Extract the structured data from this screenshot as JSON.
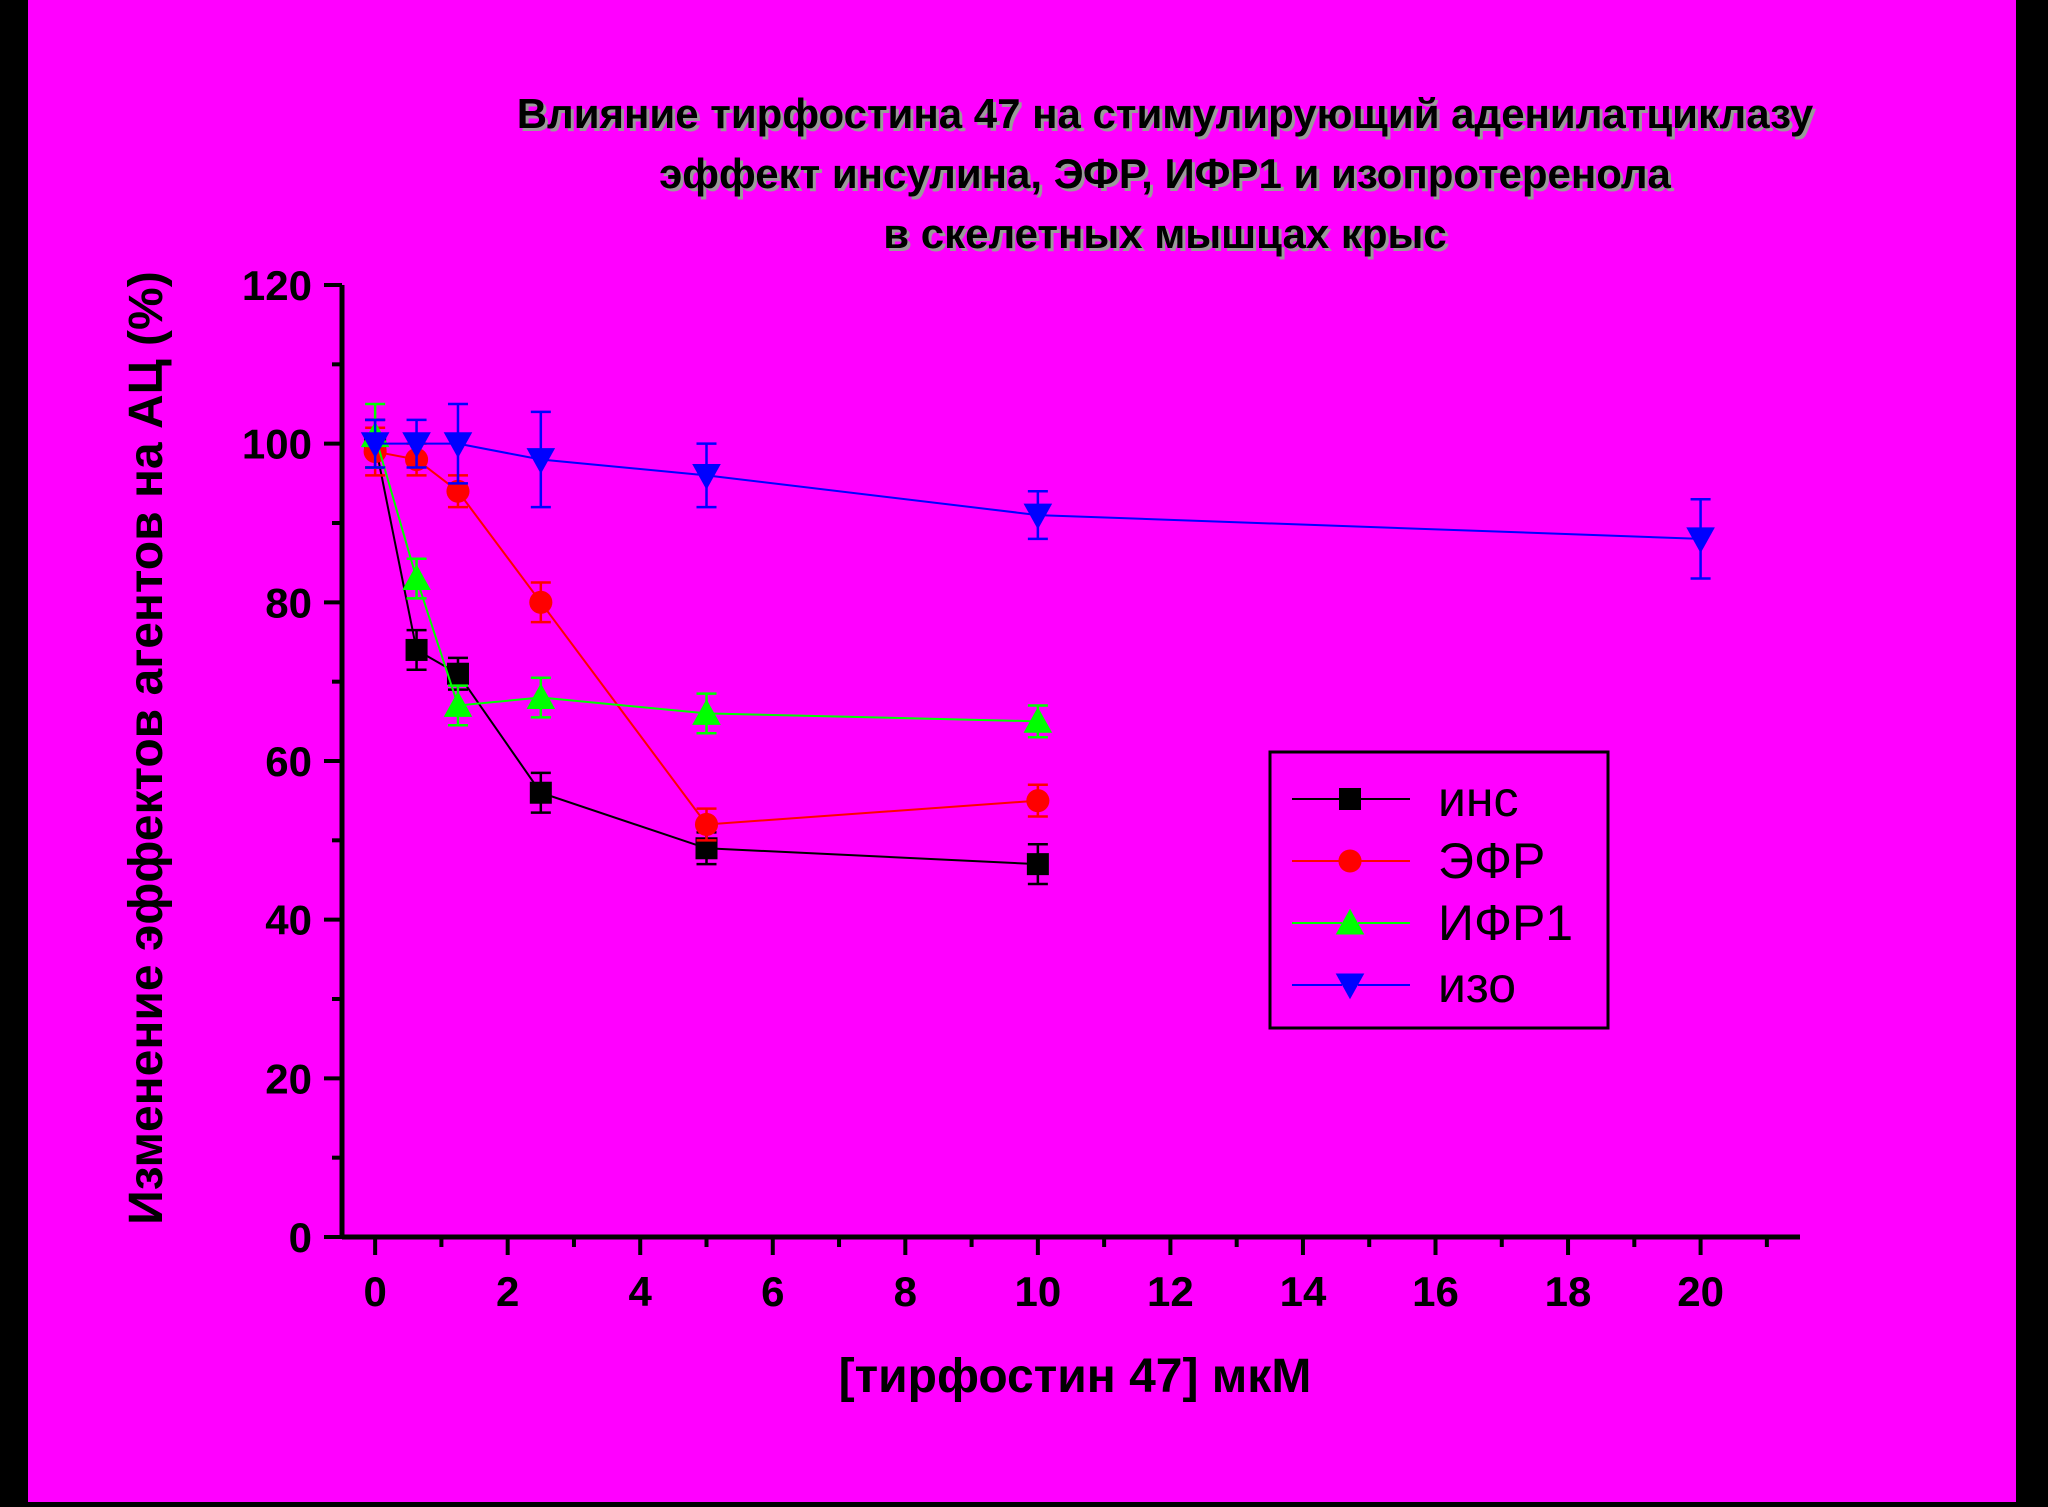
{
  "colors": {
    "background_outer": "#000000",
    "background_plot": "#ff00ff",
    "axis": "#000000",
    "legend_bg": "#ff00ff",
    "legend_border": "#000000"
  },
  "chart_data": {
    "type": "line",
    "title_lines": [
      "Влияние тирфостина 47 на стимулирующий аденилатциклазу",
      "эффект инсулина, ЭФР, ИФР1 и изопротеренола",
      "в скелетных мышцах крыс"
    ],
    "xlabel": "[тирфостин 47] мкМ",
    "ylabel": "Изменение эффектов агентов на АЦ (%)",
    "xlim": [
      -0.5,
      21.5
    ],
    "ylim": [
      0,
      120
    ],
    "x_ticks": [
      0,
      2,
      4,
      6,
      8,
      10,
      12,
      14,
      16,
      18,
      20
    ],
    "x_tick_labels": [
      "0",
      "2",
      "4",
      "6",
      "8",
      "10",
      "12",
      "14",
      "16",
      "18",
      "20"
    ],
    "y_ticks": [
      0,
      20,
      40,
      60,
      80,
      100,
      120
    ],
    "y_tick_labels": [
      "0",
      "20",
      "40",
      "60",
      "80",
      "100",
      "120"
    ],
    "grid": false,
    "legend_position": "right-middle",
    "series": [
      {
        "name": "инс",
        "color": "#000000",
        "marker": "square",
        "x": [
          0,
          0.625,
          1.25,
          2.5,
          5,
          10
        ],
        "y": [
          100,
          74,
          71,
          56,
          49,
          47
        ],
        "err": [
          3,
          2.5,
          2,
          2.5,
          2,
          2.5
        ]
      },
      {
        "name": "ЭФР",
        "color": "#ff0000",
        "marker": "circle",
        "x": [
          0,
          0.625,
          1.25,
          2.5,
          5,
          10
        ],
        "y": [
          99,
          98,
          94,
          80,
          52,
          55
        ],
        "err": [
          3,
          2,
          2,
          2.5,
          2,
          2
        ]
      },
      {
        "name": "ИФР1",
        "color": "#00ff00",
        "marker": "triangle-up",
        "x": [
          0,
          0.625,
          1.25,
          2.5,
          5,
          10
        ],
        "y": [
          101,
          83,
          67,
          68,
          66,
          65
        ],
        "err": [
          4,
          2.5,
          2.5,
          2.5,
          2.5,
          2
        ]
      },
      {
        "name": "изо",
        "color": "#0000ff",
        "marker": "triangle-down",
        "x": [
          0,
          0.625,
          1.25,
          2.5,
          5,
          10,
          20
        ],
        "y": [
          100,
          100,
          100,
          98,
          96,
          91,
          88
        ],
        "err": [
          3,
          3,
          5,
          6,
          4,
          3,
          5
        ]
      }
    ]
  }
}
